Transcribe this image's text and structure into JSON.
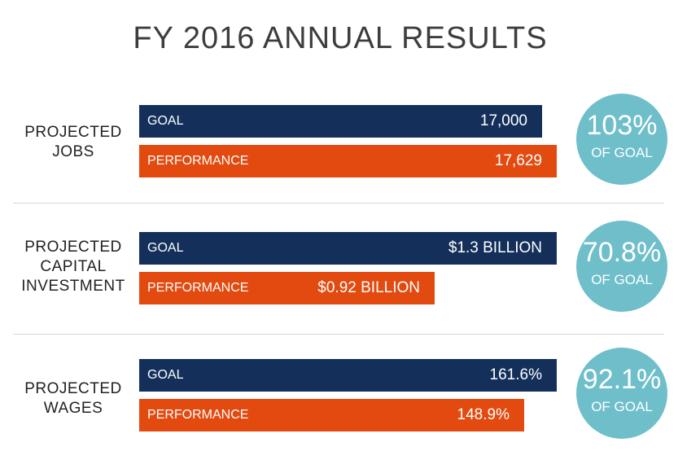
{
  "title": "FY 2016 ANNUAL RESULTS",
  "colors": {
    "goal": "#14305a",
    "performance": "#e24a10",
    "badge": "#6fbfca"
  },
  "chart_data": {
    "type": "bar",
    "series_names": [
      "GOAL",
      "PERFORMANCE"
    ],
    "groups": [
      {
        "label_lines": [
          "PROJECTED",
          "JOBS"
        ],
        "goal": {
          "label": "GOAL",
          "display": "17,000",
          "value": 17000
        },
        "performance": {
          "label": "PERFORMANCE",
          "display": "17,629",
          "value": 17629
        },
        "badge": {
          "percent": "103%",
          "sub": "OF GOAL"
        }
      },
      {
        "label_lines": [
          "PROJECTED",
          "CAPITAL",
          "INVESTMENT"
        ],
        "goal": {
          "label": "GOAL",
          "display": "$1.3 BILLION",
          "value": 1.3
        },
        "performance": {
          "label": "PERFORMANCE",
          "display": "$0.92 BILLION",
          "value": 0.92
        },
        "badge": {
          "percent": "70.8%",
          "sub": "OF GOAL"
        }
      },
      {
        "label_lines": [
          "PROJECTED",
          "WAGES"
        ],
        "goal": {
          "label": "GOAL",
          "display": "161.6%",
          "value": 161.6
        },
        "performance": {
          "label": "PERFORMANCE",
          "display": "148.9%",
          "value": 148.9
        },
        "badge": {
          "percent": "92.1%",
          "sub": "OF GOAL"
        }
      }
    ]
  }
}
